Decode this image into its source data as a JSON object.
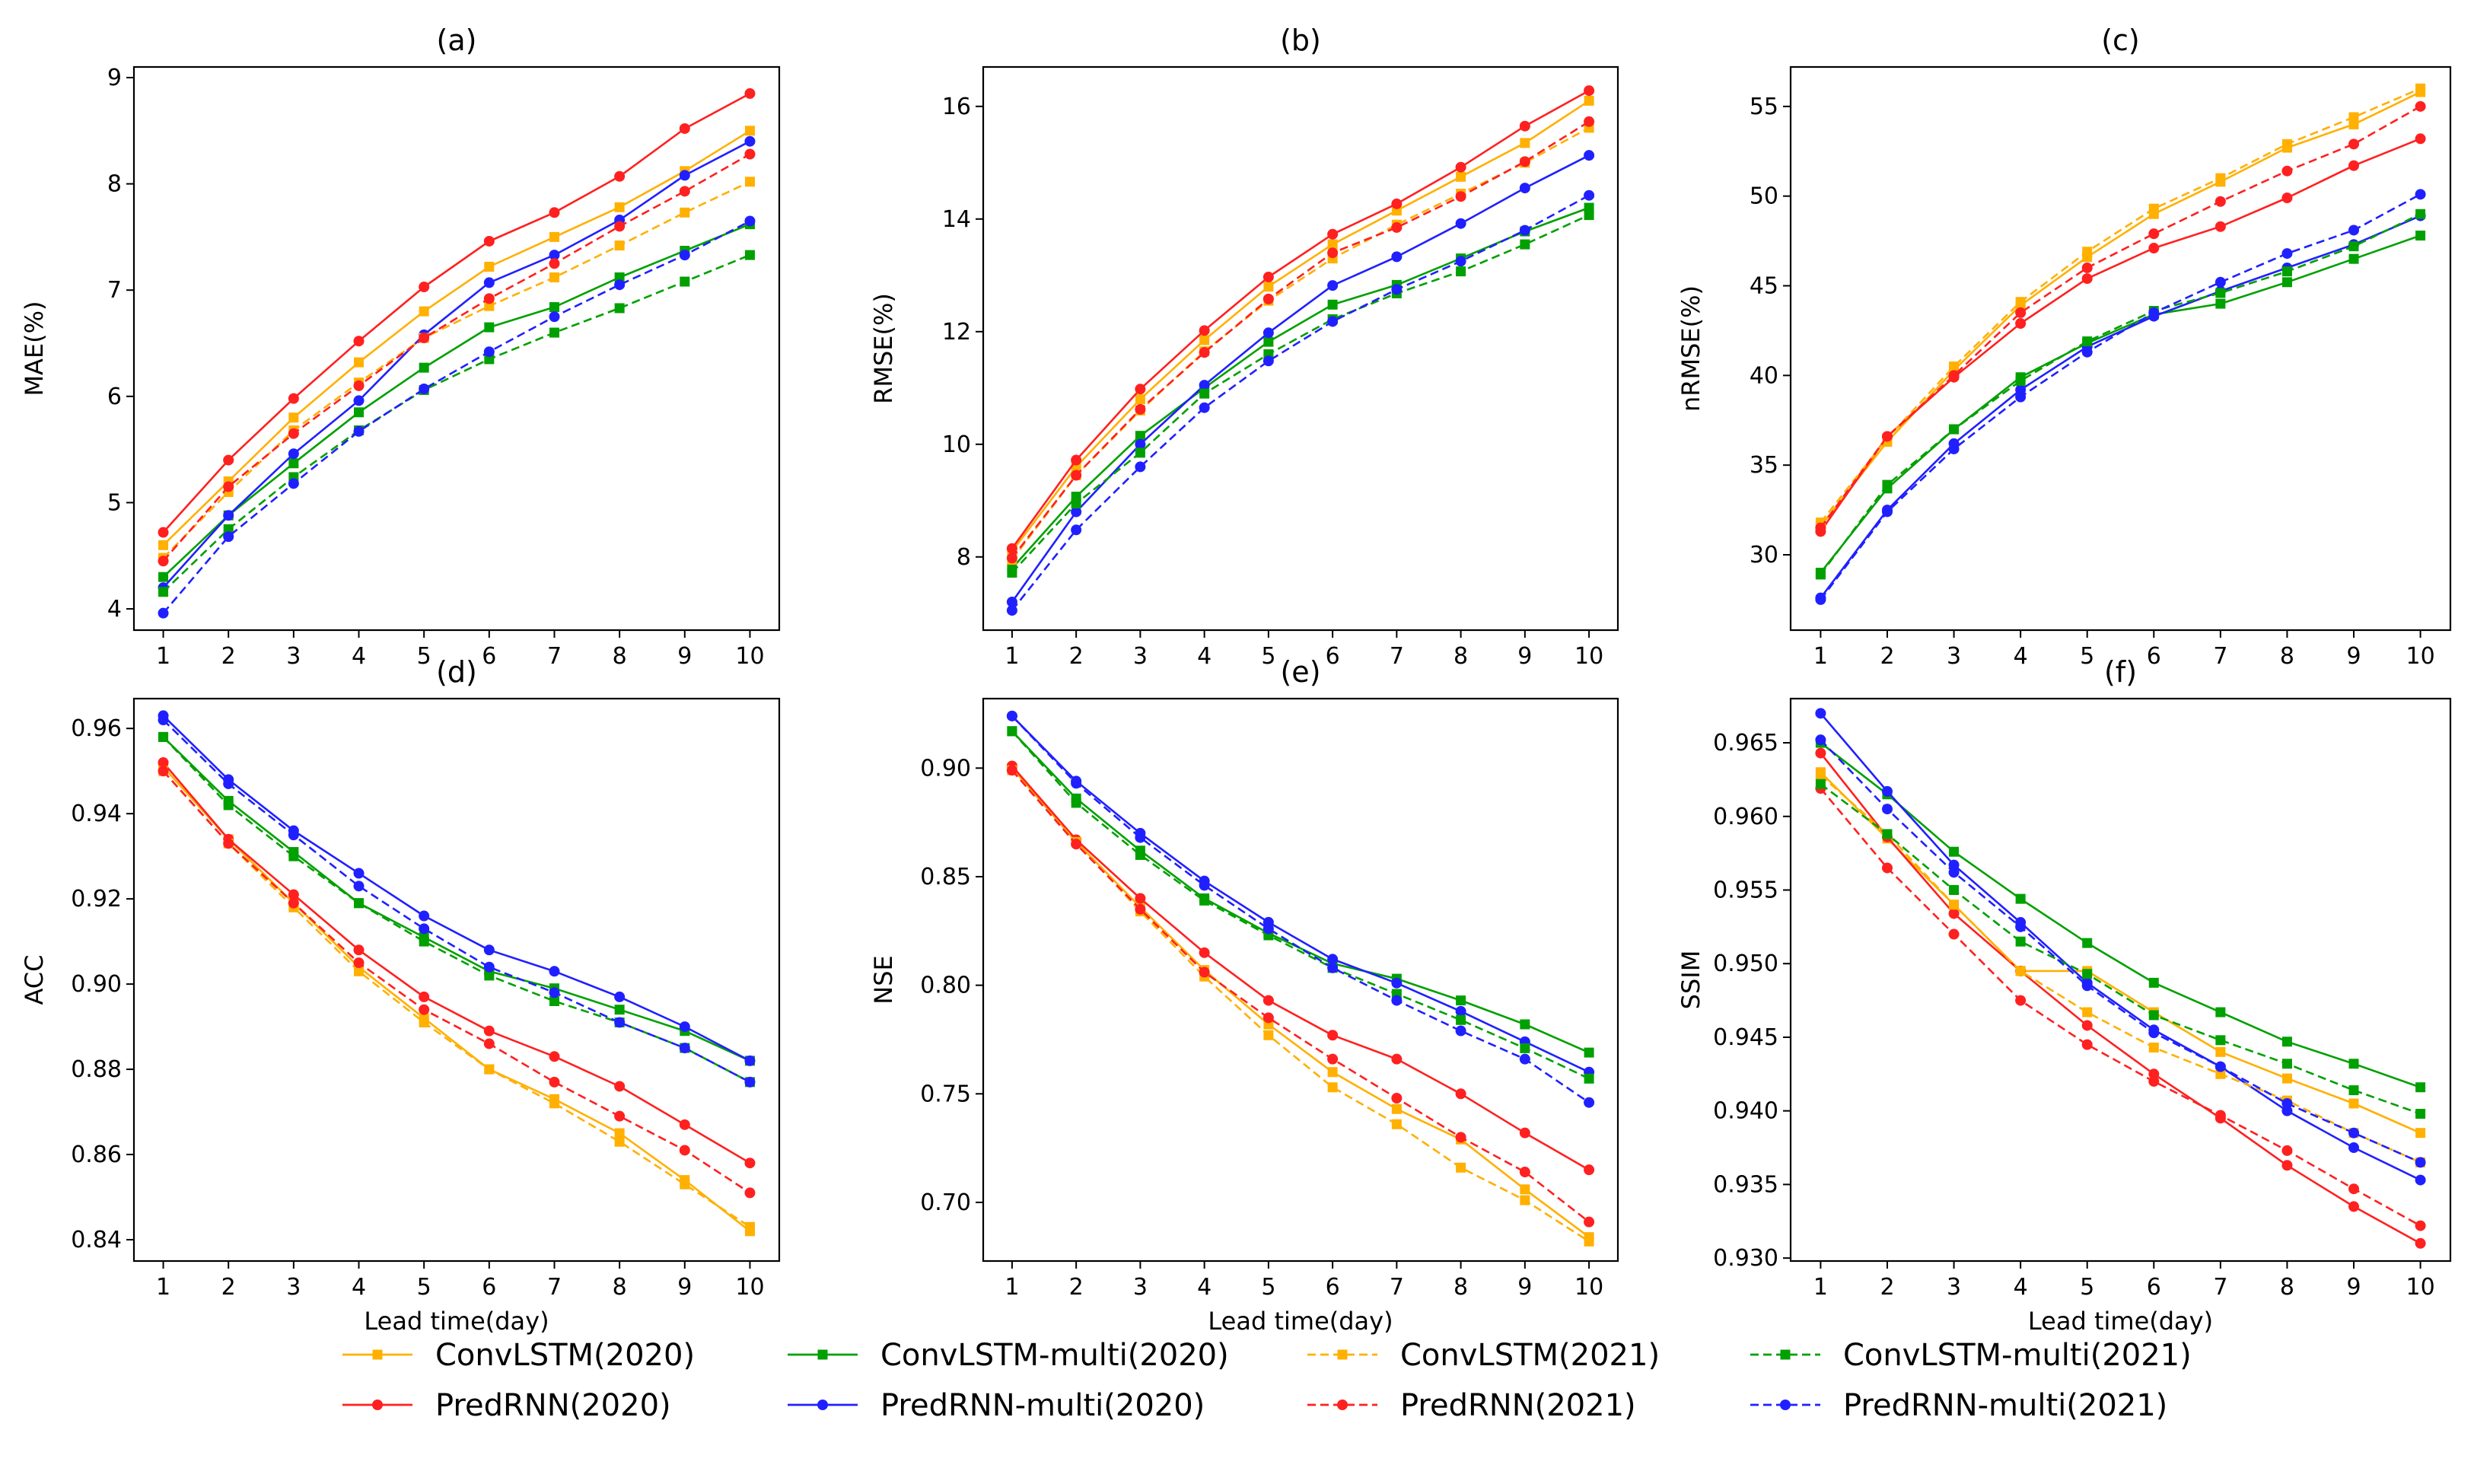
{
  "chart_data": {
    "type": "line",
    "x": [
      1,
      2,
      3,
      4,
      5,
      6,
      7,
      8,
      9,
      10
    ],
    "xlabel": "Lead time(day)",
    "xticks": [
      "1",
      "2",
      "3",
      "4",
      "5",
      "6",
      "7",
      "8",
      "9",
      "10"
    ],
    "series_styles": [
      {
        "name": "ConvLSTM(2020)",
        "color": "#FFB000",
        "dashed": false,
        "marker": "square"
      },
      {
        "name": "PredRNN(2020)",
        "color": "#FF2020",
        "dashed": false,
        "marker": "circle"
      },
      {
        "name": "ConvLSTM-multi(2020)",
        "color": "#00A000",
        "dashed": false,
        "marker": "square"
      },
      {
        "name": "PredRNN-multi(2020)",
        "color": "#2020FF",
        "dashed": false,
        "marker": "circle"
      },
      {
        "name": "ConvLSTM(2021)",
        "color": "#FFB000",
        "dashed": true,
        "marker": "square"
      },
      {
        "name": "PredRNN(2021)",
        "color": "#FF2020",
        "dashed": true,
        "marker": "circle"
      },
      {
        "name": "ConvLSTM-multi(2021)",
        "color": "#00A000",
        "dashed": true,
        "marker": "square"
      },
      {
        "name": "PredRNN-multi(2021)",
        "color": "#2020FF",
        "dashed": true,
        "marker": "circle"
      }
    ],
    "legend_rows": [
      [
        "ConvLSTM(2020)",
        "ConvLSTM-multi(2020)",
        "ConvLSTM(2021)",
        "ConvLSTM-multi(2021)"
      ],
      [
        "PredRNN(2020)",
        "PredRNN-multi(2020)",
        "PredRNN(2021)",
        "PredRNN-multi(2021)"
      ]
    ],
    "legend_placement": "bottom",
    "panels": [
      {
        "title": "(a)",
        "ylabel": "MAE(%)",
        "ylim": [
          3.8,
          9.1
        ],
        "yticks": [
          4,
          5,
          6,
          7,
          8,
          9
        ],
        "ytick_labels": [
          "4",
          "5",
          "6",
          "7",
          "8",
          "9"
        ],
        "series": [
          {
            "name": "ConvLSTM(2020)",
            "values": [
              4.6,
              5.2,
              5.8,
              6.32,
              6.8,
              7.22,
              7.5,
              7.78,
              8.12,
              8.5
            ]
          },
          {
            "name": "PredRNN(2020)",
            "values": [
              4.72,
              5.4,
              5.98,
              6.52,
              7.03,
              7.46,
              7.73,
              8.07,
              8.52,
              8.85
            ]
          },
          {
            "name": "ConvLSTM-multi(2020)",
            "values": [
              4.3,
              4.88,
              5.37,
              5.85,
              6.27,
              6.65,
              6.84,
              7.12,
              7.37,
              7.62
            ]
          },
          {
            "name": "PredRNN-multi(2020)",
            "values": [
              4.2,
              4.88,
              5.46,
              5.96,
              6.58,
              7.07,
              7.33,
              7.66,
              8.08,
              8.4
            ]
          },
          {
            "name": "ConvLSTM(2021)",
            "values": [
              4.48,
              5.1,
              5.68,
              6.13,
              6.55,
              6.85,
              7.12,
              7.42,
              7.73,
              8.02
            ]
          },
          {
            "name": "PredRNN(2021)",
            "values": [
              4.45,
              5.15,
              5.65,
              6.1,
              6.55,
              6.92,
              7.25,
              7.6,
              7.93,
              8.28
            ]
          },
          {
            "name": "ConvLSTM-multi(2021)",
            "values": [
              4.16,
              4.75,
              5.24,
              5.68,
              6.06,
              6.35,
              6.6,
              6.83,
              7.08,
              7.33
            ]
          },
          {
            "name": "PredRNN-multi(2021)",
            "values": [
              3.96,
              4.68,
              5.18,
              5.67,
              6.07,
              6.42,
              6.75,
              7.05,
              7.33,
              7.65
            ]
          }
        ]
      },
      {
        "title": "(b)",
        "ylabel": "RMSE(%)",
        "ylim": [
          6.7,
          16.7
        ],
        "yticks": [
          8,
          10,
          12,
          14,
          16
        ],
        "ytick_labels": [
          "8",
          "10",
          "12",
          "14",
          "16"
        ],
        "series": [
          {
            "name": "ConvLSTM(2020)",
            "values": [
              8.1,
              9.6,
              10.8,
              11.85,
              12.8,
              13.55,
              14.15,
              14.75,
              15.35,
              16.1
            ]
          },
          {
            "name": "PredRNN(2020)",
            "values": [
              8.15,
              9.72,
              10.98,
              12.02,
              12.97,
              13.73,
              14.27,
              14.92,
              15.65,
              16.28
            ]
          },
          {
            "name": "ConvLSTM-multi(2020)",
            "values": [
              7.8,
              9.07,
              10.15,
              11.0,
              11.82,
              12.48,
              12.83,
              13.3,
              13.78,
              14.2
            ]
          },
          {
            "name": "PredRNN-multi(2020)",
            "values": [
              7.2,
              8.8,
              10.0,
              11.05,
              11.98,
              12.82,
              13.33,
              13.92,
              14.55,
              15.13
            ]
          },
          {
            "name": "ConvLSTM(2021)",
            "values": [
              7.95,
              9.45,
              10.6,
              11.65,
              12.55,
              13.3,
              13.9,
              14.45,
              15.0,
              15.62
            ]
          },
          {
            "name": "PredRNN(2021)",
            "values": [
              7.98,
              9.45,
              10.62,
              11.63,
              12.58,
              13.4,
              13.85,
              14.4,
              15.02,
              15.73
            ]
          },
          {
            "name": "ConvLSTM-multi(2021)",
            "values": [
              7.72,
              8.95,
              9.85,
              10.9,
              11.6,
              12.22,
              12.68,
              13.07,
              13.55,
              14.07
            ]
          },
          {
            "name": "PredRNN-multi(2021)",
            "values": [
              7.05,
              8.48,
              9.6,
              10.65,
              11.48,
              12.18,
              12.75,
              13.25,
              13.8,
              14.42
            ]
          }
        ]
      },
      {
        "title": "(c)",
        "ylabel": "nRMSE(%)",
        "ylim": [
          25.8,
          57.2
        ],
        "yticks": [
          30,
          35,
          40,
          45,
          50,
          55
        ],
        "ytick_labels": [
          "30",
          "35",
          "40",
          "45",
          "50",
          "55"
        ],
        "series": [
          {
            "name": "ConvLSTM(2020)",
            "values": [
              31.6,
              36.3,
              40.3,
              43.9,
              46.6,
              49.0,
              50.8,
              52.7,
              54.0,
              55.8
            ]
          },
          {
            "name": "PredRNN(2020)",
            "values": [
              31.3,
              36.6,
              39.9,
              42.9,
              45.4,
              47.1,
              48.3,
              49.9,
              51.7,
              53.2
            ]
          },
          {
            "name": "ConvLSTM-multi(2020)",
            "values": [
              29.0,
              33.7,
              37.0,
              39.9,
              41.8,
              43.4,
              44.0,
              45.2,
              46.5,
              47.8
            ]
          },
          {
            "name": "PredRNN-multi(2020)",
            "values": [
              27.6,
              32.5,
              36.2,
              39.2,
              41.6,
              43.3,
              44.7,
              46.0,
              47.3,
              48.9
            ]
          },
          {
            "name": "ConvLSTM(2021)",
            "values": [
              31.8,
              36.5,
              40.5,
              44.1,
              46.9,
              49.3,
              51.0,
              52.9,
              54.4,
              56.0
            ]
          },
          {
            "name": "PredRNN(2021)",
            "values": [
              31.5,
              36.6,
              40.0,
              43.5,
              46.0,
              47.9,
              49.7,
              51.4,
              52.9,
              55.0
            ]
          },
          {
            "name": "ConvLSTM-multi(2021)",
            "values": [
              28.9,
              33.9,
              37.0,
              39.7,
              41.9,
              43.6,
              44.6,
              45.8,
              47.2,
              49.0
            ]
          },
          {
            "name": "PredRNN-multi(2021)",
            "values": [
              27.5,
              32.4,
              35.9,
              38.8,
              41.3,
              43.5,
              45.2,
              46.8,
              48.1,
              50.1
            ]
          }
        ]
      },
      {
        "title": "(d)",
        "ylabel": "ACC",
        "ylim": [
          0.835,
          0.967
        ],
        "yticks": [
          0.84,
          0.86,
          0.88,
          0.9,
          0.92,
          0.94,
          0.96
        ],
        "ytick_labels": [
          "0.84",
          "0.86",
          "0.88",
          "0.90",
          "0.92",
          "0.94",
          "0.96"
        ],
        "series": [
          {
            "name": "ConvLSTM(2020)",
            "values": [
              0.951,
              0.934,
              0.919,
              0.904,
              0.892,
              0.88,
              0.873,
              0.865,
              0.854,
              0.842
            ]
          },
          {
            "name": "PredRNN(2020)",
            "values": [
              0.952,
              0.934,
              0.921,
              0.908,
              0.897,
              0.889,
              0.883,
              0.876,
              0.867,
              0.858
            ]
          },
          {
            "name": "ConvLSTM-multi(2020)",
            "values": [
              0.958,
              0.943,
              0.931,
              0.919,
              0.911,
              0.903,
              0.899,
              0.894,
              0.889,
              0.882
            ]
          },
          {
            "name": "PredRNN-multi(2020)",
            "values": [
              0.963,
              0.948,
              0.936,
              0.926,
              0.916,
              0.908,
              0.903,
              0.897,
              0.89,
              0.882
            ]
          },
          {
            "name": "ConvLSTM(2021)",
            "values": [
              0.95,
              0.933,
              0.918,
              0.903,
              0.891,
              0.88,
              0.872,
              0.863,
              0.853,
              0.843
            ]
          },
          {
            "name": "PredRNN(2021)",
            "values": [
              0.95,
              0.933,
              0.919,
              0.905,
              0.894,
              0.886,
              0.877,
              0.869,
              0.861,
              0.851
            ]
          },
          {
            "name": "ConvLSTM-multi(2021)",
            "values": [
              0.958,
              0.942,
              0.93,
              0.919,
              0.91,
              0.902,
              0.896,
              0.891,
              0.885,
              0.877
            ]
          },
          {
            "name": "PredRNN-multi(2021)",
            "values": [
              0.962,
              0.947,
              0.935,
              0.923,
              0.913,
              0.904,
              0.898,
              0.891,
              0.885,
              0.877
            ]
          }
        ]
      },
      {
        "title": "(e)",
        "ylabel": "NSE",
        "ylim": [
          0.673,
          0.932
        ],
        "yticks": [
          0.7,
          0.75,
          0.8,
          0.85,
          0.9
        ],
        "ytick_labels": [
          "0.70",
          "0.75",
          "0.80",
          "0.85",
          "0.90"
        ],
        "series": [
          {
            "name": "ConvLSTM(2020)",
            "values": [
              0.9,
              0.866,
              0.836,
              0.807,
              0.782,
              0.76,
              0.743,
              0.729,
              0.706,
              0.684
            ]
          },
          {
            "name": "PredRNN(2020)",
            "values": [
              0.901,
              0.867,
              0.84,
              0.815,
              0.793,
              0.777,
              0.766,
              0.75,
              0.732,
              0.715
            ]
          },
          {
            "name": "ConvLSTM-multi(2020)",
            "values": [
              0.917,
              0.886,
              0.862,
              0.84,
              0.824,
              0.81,
              0.803,
              0.793,
              0.782,
              0.769
            ]
          },
          {
            "name": "PredRNN-multi(2020)",
            "values": [
              0.924,
              0.894,
              0.87,
              0.848,
              0.829,
              0.812,
              0.801,
              0.788,
              0.774,
              0.76
            ]
          },
          {
            "name": "ConvLSTM(2021)",
            "values": [
              0.899,
              0.866,
              0.834,
              0.804,
              0.777,
              0.753,
              0.736,
              0.716,
              0.701,
              0.682
            ]
          },
          {
            "name": "PredRNN(2021)",
            "values": [
              0.899,
              0.865,
              0.835,
              0.806,
              0.785,
              0.766,
              0.748,
              0.73,
              0.714,
              0.691
            ]
          },
          {
            "name": "ConvLSTM-multi(2021)",
            "values": [
              0.917,
              0.884,
              0.86,
              0.839,
              0.823,
              0.808,
              0.796,
              0.784,
              0.771,
              0.757
            ]
          },
          {
            "name": "PredRNN-multi(2021)",
            "values": [
              0.924,
              0.893,
              0.868,
              0.846,
              0.826,
              0.808,
              0.793,
              0.779,
              0.766,
              0.746
            ]
          }
        ]
      },
      {
        "title": "(f)",
        "ylabel": "SSIM",
        "ylim": [
          0.9298,
          0.968
        ],
        "yticks": [
          0.93,
          0.935,
          0.94,
          0.945,
          0.95,
          0.955,
          0.96,
          0.965
        ],
        "ytick_labels": [
          "0.930",
          "0.935",
          "0.940",
          "0.945",
          "0.950",
          "0.955",
          "0.960",
          "0.965"
        ],
        "series": [
          {
            "name": "ConvLSTM(2020)",
            "values": [
              0.963,
              0.9585,
              0.954,
              0.9495,
              0.9495,
              0.9467,
              0.944,
              0.9422,
              0.9405,
              0.9385
            ]
          },
          {
            "name": "PredRNN(2020)",
            "values": [
              0.9643,
              0.9586,
              0.9534,
              0.9495,
              0.9458,
              0.9425,
              0.9395,
              0.9363,
              0.9335,
              0.931
            ]
          },
          {
            "name": "ConvLSTM-multi(2020)",
            "values": [
              0.965,
              0.9615,
              0.9576,
              0.9544,
              0.9514,
              0.9487,
              0.9467,
              0.9447,
              0.9432,
              0.9416
            ]
          },
          {
            "name": "PredRNN-multi(2020)",
            "values": [
              0.967,
              0.9617,
              0.9567,
              0.9528,
              0.9487,
              0.9455,
              0.943,
              0.94,
              0.9375,
              0.9353
            ]
          },
          {
            "name": "ConvLSTM(2021)",
            "values": [
              0.9628,
              0.9588,
              0.954,
              0.9495,
              0.9467,
              0.9443,
              0.9425,
              0.9407,
              0.9385,
              0.9365
            ]
          },
          {
            "name": "PredRNN(2021)",
            "values": [
              0.9619,
              0.9565,
              0.952,
              0.9475,
              0.9445,
              0.942,
              0.9397,
              0.9373,
              0.9347,
              0.9322
            ]
          },
          {
            "name": "ConvLSTM-multi(2021)",
            "values": [
              0.9622,
              0.9588,
              0.955,
              0.9515,
              0.9493,
              0.9465,
              0.9448,
              0.9432,
              0.9414,
              0.9398
            ]
          },
          {
            "name": "PredRNN-multi(2021)",
            "values": [
              0.9652,
              0.9605,
              0.9562,
              0.9525,
              0.9485,
              0.9453,
              0.943,
              0.9405,
              0.9385,
              0.9365
            ]
          }
        ]
      }
    ]
  }
}
